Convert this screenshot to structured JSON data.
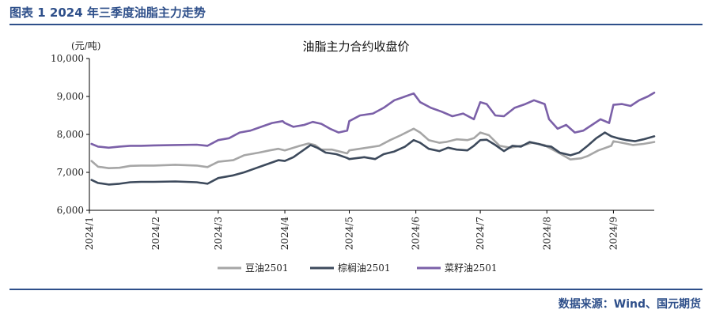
{
  "figure": {
    "caption": "图表 1 2024 年三季度油脂主力走势",
    "source": "数据来源：Wind、国元期货"
  },
  "chart_data": {
    "type": "line",
    "title": "油脂主力合约收盘价",
    "ylabel": "(元/吨)",
    "xlabel": "",
    "ylim": [
      6000,
      10000
    ],
    "yticks": [
      6000,
      7000,
      8000,
      9000,
      10000
    ],
    "ytick_labels": [
      "6,000",
      "7,000",
      "8,000",
      "9,000",
      "10,000"
    ],
    "xlim": [
      "2024-01-01",
      "2024-09-20"
    ],
    "xticks": [
      "2024-01-01",
      "2024-02-01",
      "2024-03-01",
      "2024-04-01",
      "2024-05-01",
      "2024-06-01",
      "2024-07-01",
      "2024-08-01",
      "2024-09-01"
    ],
    "xtick_labels": [
      "2024/1",
      "2024/2",
      "2024/3",
      "2024/4",
      "2024/5",
      "2024/6",
      "2024/7",
      "2024/8",
      "2024/9"
    ],
    "grid": false,
    "legend_position": "bottom",
    "series": [
      {
        "name": "豆油2501",
        "color": "#a6a6a6",
        "points": [
          [
            "2024-01-02",
            7300
          ],
          [
            "2024-01-05",
            7150
          ],
          [
            "2024-01-10",
            7110
          ],
          [
            "2024-01-15",
            7120
          ],
          [
            "2024-01-20",
            7170
          ],
          [
            "2024-01-25",
            7180
          ],
          [
            "2024-01-31",
            7180
          ],
          [
            "2024-02-10",
            7200
          ],
          [
            "2024-02-20",
            7180
          ],
          [
            "2024-02-25",
            7140
          ],
          [
            "2024-03-01",
            7280
          ],
          [
            "2024-03-08",
            7320
          ],
          [
            "2024-03-13",
            7450
          ],
          [
            "2024-03-20",
            7520
          ],
          [
            "2024-03-25",
            7580
          ],
          [
            "2024-03-29",
            7620
          ],
          [
            "2024-04-01",
            7580
          ],
          [
            "2024-04-08",
            7700
          ],
          [
            "2024-04-12",
            7760
          ],
          [
            "2024-04-15",
            7720
          ],
          [
            "2024-04-18",
            7600
          ],
          [
            "2024-04-23",
            7600
          ],
          [
            "2024-04-30",
            7500
          ],
          [
            "2024-05-01",
            7580
          ],
          [
            "2024-05-08",
            7640
          ],
          [
            "2024-05-15",
            7700
          ],
          [
            "2024-05-20",
            7850
          ],
          [
            "2024-05-25",
            7980
          ],
          [
            "2024-05-31",
            8150
          ],
          [
            "2024-06-03",
            8050
          ],
          [
            "2024-06-07",
            7850
          ],
          [
            "2024-06-12",
            7780
          ],
          [
            "2024-06-15",
            7800
          ],
          [
            "2024-06-20",
            7870
          ],
          [
            "2024-06-25",
            7850
          ],
          [
            "2024-06-28",
            7900
          ],
          [
            "2024-07-01",
            8050
          ],
          [
            "2024-07-05",
            7980
          ],
          [
            "2024-07-10",
            7700
          ],
          [
            "2024-07-15",
            7650
          ],
          [
            "2024-07-20",
            7700
          ],
          [
            "2024-07-25",
            7780
          ],
          [
            "2024-07-31",
            7720
          ],
          [
            "2024-08-01",
            7680
          ],
          [
            "2024-08-07",
            7500
          ],
          [
            "2024-08-12",
            7340
          ],
          [
            "2024-08-17",
            7370
          ],
          [
            "2024-08-20",
            7430
          ],
          [
            "2024-08-25",
            7580
          ],
          [
            "2024-08-31",
            7700
          ],
          [
            "2024-09-01",
            7820
          ],
          [
            "2024-09-05",
            7780
          ],
          [
            "2024-09-10",
            7720
          ],
          [
            "2024-09-15",
            7750
          ],
          [
            "2024-09-20",
            7800
          ]
        ]
      },
      {
        "name": "棕榈油2501",
        "color": "#3d4a5c",
        "points": [
          [
            "2024-01-02",
            6800
          ],
          [
            "2024-01-05",
            6720
          ],
          [
            "2024-01-10",
            6680
          ],
          [
            "2024-01-15",
            6700
          ],
          [
            "2024-01-20",
            6740
          ],
          [
            "2024-01-25",
            6750
          ],
          [
            "2024-01-31",
            6750
          ],
          [
            "2024-02-10",
            6760
          ],
          [
            "2024-02-20",
            6740
          ],
          [
            "2024-02-25",
            6700
          ],
          [
            "2024-03-01",
            6850
          ],
          [
            "2024-03-08",
            6920
          ],
          [
            "2024-03-13",
            7000
          ],
          [
            "2024-03-18",
            7100
          ],
          [
            "2024-03-23",
            7200
          ],
          [
            "2024-03-29",
            7320
          ],
          [
            "2024-04-01",
            7300
          ],
          [
            "2024-04-05",
            7400
          ],
          [
            "2024-04-10",
            7600
          ],
          [
            "2024-04-13",
            7720
          ],
          [
            "2024-04-16",
            7650
          ],
          [
            "2024-04-20",
            7520
          ],
          [
            "2024-04-25",
            7480
          ],
          [
            "2024-04-30",
            7380
          ],
          [
            "2024-05-01",
            7350
          ],
          [
            "2024-05-08",
            7400
          ],
          [
            "2024-05-13",
            7350
          ],
          [
            "2024-05-17",
            7480
          ],
          [
            "2024-05-22",
            7550
          ],
          [
            "2024-05-27",
            7680
          ],
          [
            "2024-05-31",
            7850
          ],
          [
            "2024-06-03",
            7780
          ],
          [
            "2024-06-07",
            7620
          ],
          [
            "2024-06-12",
            7560
          ],
          [
            "2024-06-16",
            7650
          ],
          [
            "2024-06-20",
            7600
          ],
          [
            "2024-06-25",
            7580
          ],
          [
            "2024-06-28",
            7700
          ],
          [
            "2024-07-01",
            7850
          ],
          [
            "2024-07-04",
            7860
          ],
          [
            "2024-07-08",
            7720
          ],
          [
            "2024-07-12",
            7560
          ],
          [
            "2024-07-16",
            7700
          ],
          [
            "2024-07-20",
            7680
          ],
          [
            "2024-07-24",
            7800
          ],
          [
            "2024-07-28",
            7750
          ],
          [
            "2024-07-31",
            7700
          ],
          [
            "2024-08-03",
            7680
          ],
          [
            "2024-08-07",
            7520
          ],
          [
            "2024-08-12",
            7450
          ],
          [
            "2024-08-16",
            7520
          ],
          [
            "2024-08-20",
            7700
          ],
          [
            "2024-08-24",
            7900
          ],
          [
            "2024-08-28",
            8050
          ],
          [
            "2024-08-31",
            7950
          ],
          [
            "2024-09-03",
            7900
          ],
          [
            "2024-09-07",
            7850
          ],
          [
            "2024-09-11",
            7820
          ],
          [
            "2024-09-15",
            7870
          ],
          [
            "2024-09-20",
            7950
          ]
        ]
      },
      {
        "name": "菜籽油2501",
        "color": "#7b60a8",
        "points": [
          [
            "2024-01-02",
            7750
          ],
          [
            "2024-01-05",
            7680
          ],
          [
            "2024-01-10",
            7650
          ],
          [
            "2024-01-15",
            7680
          ],
          [
            "2024-01-20",
            7700
          ],
          [
            "2024-01-25",
            7700
          ],
          [
            "2024-01-31",
            7710
          ],
          [
            "2024-02-10",
            7720
          ],
          [
            "2024-02-20",
            7730
          ],
          [
            "2024-02-25",
            7700
          ],
          [
            "2024-03-01",
            7850
          ],
          [
            "2024-03-06",
            7900
          ],
          [
            "2024-03-11",
            8050
          ],
          [
            "2024-03-16",
            8100
          ],
          [
            "2024-03-21",
            8200
          ],
          [
            "2024-03-26",
            8300
          ],
          [
            "2024-03-31",
            8350
          ],
          [
            "2024-04-01",
            8300
          ],
          [
            "2024-04-05",
            8200
          ],
          [
            "2024-04-10",
            8250
          ],
          [
            "2024-04-14",
            8330
          ],
          [
            "2024-04-18",
            8280
          ],
          [
            "2024-04-22",
            8150
          ],
          [
            "2024-04-26",
            8050
          ],
          [
            "2024-04-30",
            8100
          ],
          [
            "2024-05-01",
            8350
          ],
          [
            "2024-05-06",
            8500
          ],
          [
            "2024-05-12",
            8550
          ],
          [
            "2024-05-17",
            8700
          ],
          [
            "2024-05-22",
            8900
          ],
          [
            "2024-05-27",
            9000
          ],
          [
            "2024-05-31",
            9080
          ],
          [
            "2024-06-03",
            8850
          ],
          [
            "2024-06-08",
            8700
          ],
          [
            "2024-06-13",
            8600
          ],
          [
            "2024-06-18",
            8480
          ],
          [
            "2024-06-23",
            8550
          ],
          [
            "2024-06-28",
            8400
          ],
          [
            "2024-07-01",
            8850
          ],
          [
            "2024-07-04",
            8800
          ],
          [
            "2024-07-08",
            8500
          ],
          [
            "2024-07-12",
            8480
          ],
          [
            "2024-07-17",
            8700
          ],
          [
            "2024-07-22",
            8800
          ],
          [
            "2024-07-26",
            8900
          ],
          [
            "2024-07-31",
            8800
          ],
          [
            "2024-08-02",
            8400
          ],
          [
            "2024-08-06",
            8150
          ],
          [
            "2024-08-10",
            8250
          ],
          [
            "2024-08-14",
            8050
          ],
          [
            "2024-08-18",
            8100
          ],
          [
            "2024-08-22",
            8250
          ],
          [
            "2024-08-26",
            8400
          ],
          [
            "2024-08-30",
            8300
          ],
          [
            "2024-09-01",
            8780
          ],
          [
            "2024-09-05",
            8800
          ],
          [
            "2024-09-09",
            8750
          ],
          [
            "2024-09-13",
            8900
          ],
          [
            "2024-09-17",
            9000
          ],
          [
            "2024-09-20",
            9100
          ]
        ]
      }
    ]
  }
}
